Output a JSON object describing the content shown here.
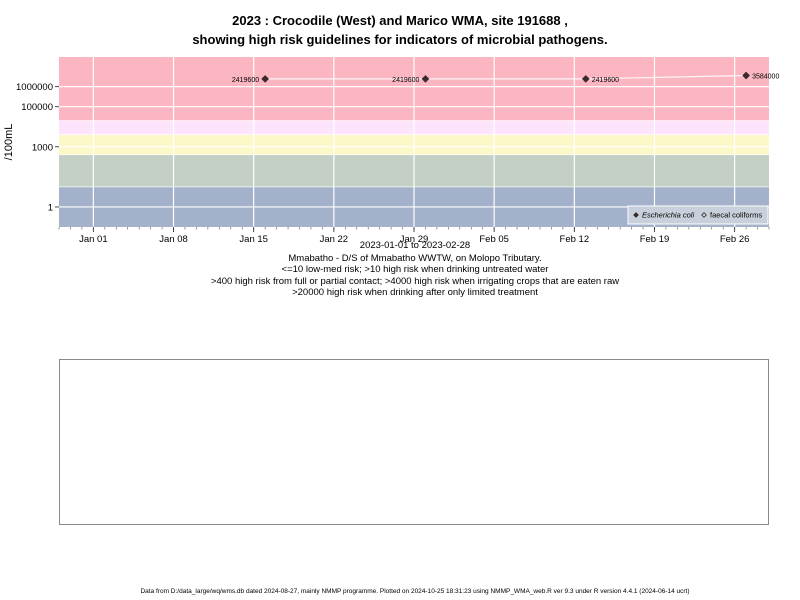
{
  "title_lines": [
    "2023 : Crocodile (West) and Marico WMA, site 191688 ,",
    "showing high risk guidelines for indicators of microbial pathogens."
  ],
  "captions": [
    "2023-01-01 to 2023-02-28",
    "Mmabatho - D/S of Mmabatho WWTW, on Molopo Tributary.",
    "<=10 low-med risk; >10 high risk when drinking untreated water",
    ">400 high risk from full or partial contact; >4000 high risk when irrigating crops that are eaten raw",
    ">20000 high risk when drinking after only limited treatment"
  ],
  "footer": "Data from D:/data_large/wq/wms.db dated 2024-08-27, mainly NMMP programme. Plotted on 2024-10-25 18:31:23 using NMMP_WMA_web.R ver 9.3 under R version 4.4.1 (2024-06-14 ucrt)",
  "chart_data": {
    "type": "scatter",
    "ylabel": "/100mL",
    "y_scale": "log",
    "ylim": [
      0.1,
      30000000
    ],
    "xlim": [
      "2022-12-29",
      "2023-03-01"
    ],
    "y_ticks": [
      {
        "value": 1,
        "label": "1"
      },
      {
        "value": 1000,
        "label": "1000"
      },
      {
        "value": 100000,
        "label": "100000"
      },
      {
        "value": 1000000,
        "label": "1000000"
      }
    ],
    "x_ticks": [
      {
        "date": "2023-01-01",
        "label": "Jan 01"
      },
      {
        "date": "2023-01-08",
        "label": "Jan 08"
      },
      {
        "date": "2023-01-15",
        "label": "Jan 15"
      },
      {
        "date": "2023-01-22",
        "label": "Jan 22"
      },
      {
        "date": "2023-01-29",
        "label": "Jan 29"
      },
      {
        "date": "2023-02-05",
        "label": "Feb 05"
      },
      {
        "date": "2023-02-12",
        "label": "Feb 12"
      },
      {
        "date": "2023-02-19",
        "label": "Feb 19"
      },
      {
        "date": "2023-02-26",
        "label": "Feb 26"
      }
    ],
    "risk_bands": [
      {
        "from": 0.1,
        "to": 10,
        "color": "#a3b1cb"
      },
      {
        "from": 10,
        "to": 400,
        "color": "#c4cfc6"
      },
      {
        "from": 400,
        "to": 4000,
        "color": "#fcf8c8"
      },
      {
        "from": 4000,
        "to": 20000,
        "color": "#fde4fc"
      },
      {
        "from": 20000,
        "to": 30000000,
        "color": "#fbb6c1"
      }
    ],
    "threshold_lines": [
      10,
      400,
      4000,
      20000
    ],
    "series": [
      {
        "name": "Escherichia coli",
        "marker": "filled-diamond",
        "color": "#3a2a2e",
        "points": [
          {
            "date": "2023-01-16",
            "value": 2419600,
            "label": "2419600",
            "label_side": "left"
          },
          {
            "date": "2023-01-30",
            "value": 2419600,
            "label": "2419600",
            "label_side": "left"
          },
          {
            "date": "2023-02-13",
            "value": 2419600,
            "label": "2419600",
            "label_side": "right"
          },
          {
            "date": "2023-02-27",
            "value": 3584000,
            "label": "3584000",
            "label_side": "right"
          }
        ]
      },
      {
        "name": "faecal coliforms",
        "marker": "open-diamond",
        "color": "#3a2a2e",
        "points": []
      }
    ],
    "legend": {
      "position": "bottom-right",
      "entries": [
        "Escherichia coli",
        "faecal coliforms"
      ]
    }
  }
}
